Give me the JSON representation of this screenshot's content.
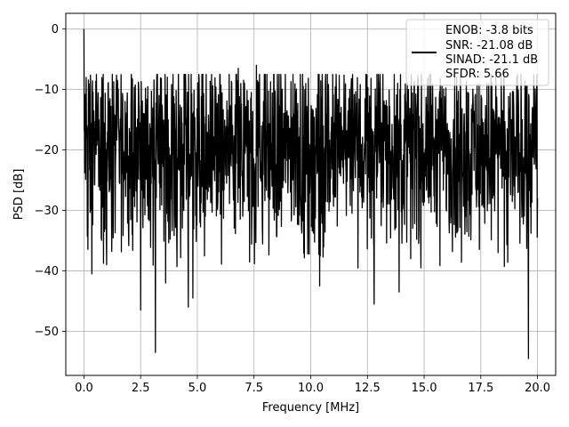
{
  "chart_data": {
    "type": "line",
    "title": "",
    "xlabel": "Frequency [MHz]",
    "ylabel": "PSD [dB]",
    "xlim": [
      -0.8,
      20.8
    ],
    "ylim": [
      -57.3,
      2.6
    ],
    "xticks": [
      0.0,
      2.5,
      5.0,
      7.5,
      10.0,
      12.5,
      15.0,
      17.5,
      20.0
    ],
    "xtick_labels": [
      "0.0",
      "2.5",
      "5.0",
      "7.5",
      "10.0",
      "12.5",
      "15.0",
      "17.5",
      "20.0"
    ],
    "yticks": [
      0,
      -10,
      -20,
      -30,
      -40,
      -50
    ],
    "ytick_labels": [
      "0",
      "−10",
      "−20",
      "−30",
      "−40",
      "−50"
    ],
    "grid": true,
    "legend_position": "top-right",
    "legend_lines": [
      "ENOB: -3.8 bits",
      "SNR: -21.08 dB",
      "SINAD: -21.1 dB",
      "SFDR: 5.66"
    ],
    "series_color": "#000000",
    "noise_floor_db": -20,
    "noise_spread_db": 7,
    "notable_points": [
      {
        "x": 0.0,
        "y": 0.0
      },
      {
        "x": 0.1,
        "y": -8
      },
      {
        "x": 0.35,
        "y": -40.5
      },
      {
        "x": 1.0,
        "y": -39
      },
      {
        "x": 2.5,
        "y": -46.5
      },
      {
        "x": 3.15,
        "y": -53.5
      },
      {
        "x": 3.6,
        "y": -42
      },
      {
        "x": 4.6,
        "y": -46
      },
      {
        "x": 4.8,
        "y": -44.5
      },
      {
        "x": 6.8,
        "y": -6.5
      },
      {
        "x": 7.6,
        "y": -6
      },
      {
        "x": 10.4,
        "y": -42.5
      },
      {
        "x": 12.8,
        "y": -45.5
      },
      {
        "x": 13.9,
        "y": -43.5
      },
      {
        "x": 19.6,
        "y": -54.5
      },
      {
        "x": 20.0,
        "y": -28
      }
    ]
  }
}
